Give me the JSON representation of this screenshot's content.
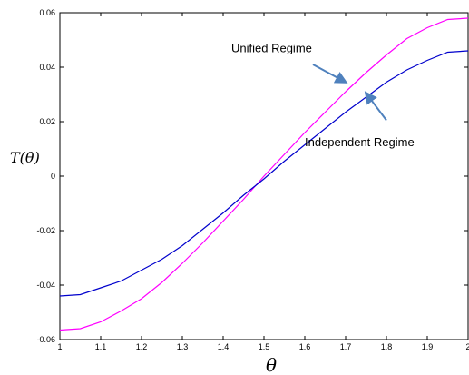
{
  "chart_data": {
    "type": "line",
    "title": "",
    "xlabel": "θ",
    "ylabel_parts": [
      "T(",
      "θ",
      ")"
    ],
    "xlim": [
      1,
      2
    ],
    "ylim": [
      -0.06,
      0.06
    ],
    "xticks": [
      1,
      1.1,
      1.2,
      1.3,
      1.4,
      1.5,
      1.6,
      1.7,
      1.8,
      1.9,
      2
    ],
    "xtick_labels": [
      "1",
      "1.1",
      "1.2",
      "1.3",
      "1.4",
      "1.5",
      "1.6",
      "1.7",
      "1.8",
      "1.9",
      "2"
    ],
    "yticks": [
      -0.06,
      -0.04,
      -0.02,
      0,
      0.02,
      0.04,
      0.06
    ],
    "ytick_labels": [
      "-0.06",
      "-0.04",
      "-0.02",
      "0",
      "0.02",
      "0.04",
      "0.06"
    ],
    "grid": false,
    "legend": "none",
    "series": [
      {
        "color": "#ff00ff",
        "x": [
          1.0,
          1.05,
          1.1,
          1.15,
          1.2,
          1.25,
          1.3,
          1.35,
          1.4,
          1.45,
          1.5,
          1.55,
          1.6,
          1.65,
          1.7,
          1.75,
          1.8,
          1.85,
          1.9,
          1.95,
          2.0
        ],
        "y": [
          -0.0565,
          -0.056,
          -0.0535,
          -0.0495,
          -0.045,
          -0.039,
          -0.032,
          -0.0245,
          -0.0165,
          -0.0085,
          0.0,
          0.008,
          0.016,
          0.0235,
          0.031,
          0.038,
          0.0445,
          0.0505,
          0.0545,
          0.0575,
          0.058
        ]
      },
      {
        "color": "#0000cc",
        "x": [
          1.0,
          1.05,
          1.1,
          1.15,
          1.2,
          1.25,
          1.3,
          1.35,
          1.4,
          1.45,
          1.5,
          1.55,
          1.6,
          1.65,
          1.7,
          1.75,
          1.8,
          1.85,
          1.9,
          1.95,
          2.0
        ],
        "y": [
          -0.044,
          -0.0435,
          -0.041,
          -0.0385,
          -0.0345,
          -0.0305,
          -0.0255,
          -0.0195,
          -0.0135,
          -0.007,
          -0.001,
          0.0055,
          0.0115,
          0.0175,
          0.0235,
          0.029,
          0.0345,
          0.039,
          0.0425,
          0.0455,
          0.046
        ]
      }
    ],
    "annotations": [
      {
        "text": "Unified Regime",
        "x": 1.42,
        "y": 0.0455,
        "arrow_to": [
          1.7,
          0.0345
        ],
        "arrow_from": [
          1.62,
          0.041
        ]
      },
      {
        "text": "Independent Regime",
        "x": 1.6,
        "y": 0.011,
        "arrow_to": [
          1.75,
          0.0305
        ],
        "arrow_from": [
          1.8,
          0.0205
        ]
      }
    ],
    "arrow_color": "#4f81bd"
  }
}
